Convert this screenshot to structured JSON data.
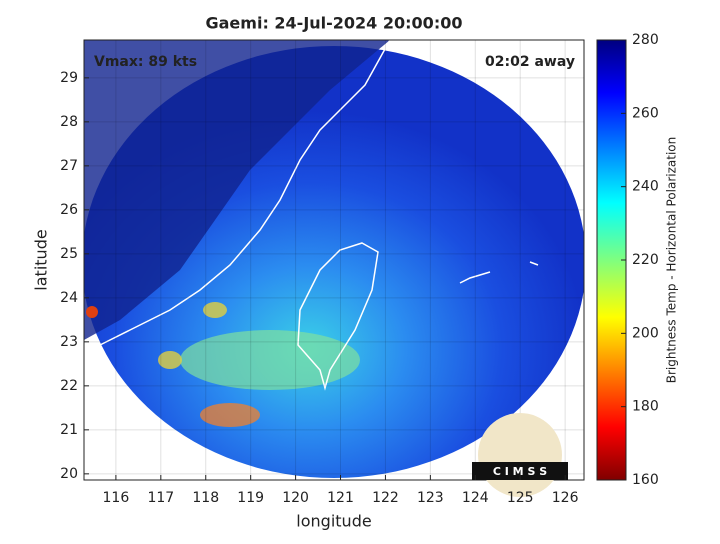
{
  "chart_data": {
    "type": "map",
    "title": "Gaemi: 24-Jul-2024 20:00:00",
    "annotations": [
      "Vmax: 89 kts",
      "02:02 away"
    ],
    "xlabel": "longitude",
    "ylabel": "latitude",
    "xlim": [
      115.29,
      126.42
    ],
    "xticks": [
      116,
      117,
      118,
      119,
      120,
      121,
      122,
      123,
      124,
      125,
      126
    ],
    "ylim": [
      19.86,
      29.86
    ],
    "yticks": [
      20,
      21,
      22,
      23,
      24,
      25,
      26,
      27,
      28,
      29
    ],
    "grid": true,
    "colorbar": {
      "label": "Brightness Temp - Horizontal Polarization",
      "lim": [
        160,
        280
      ],
      "ticks": [
        160,
        180,
        200,
        220,
        240,
        260,
        280
      ]
    },
    "logo": "C I M S S"
  }
}
